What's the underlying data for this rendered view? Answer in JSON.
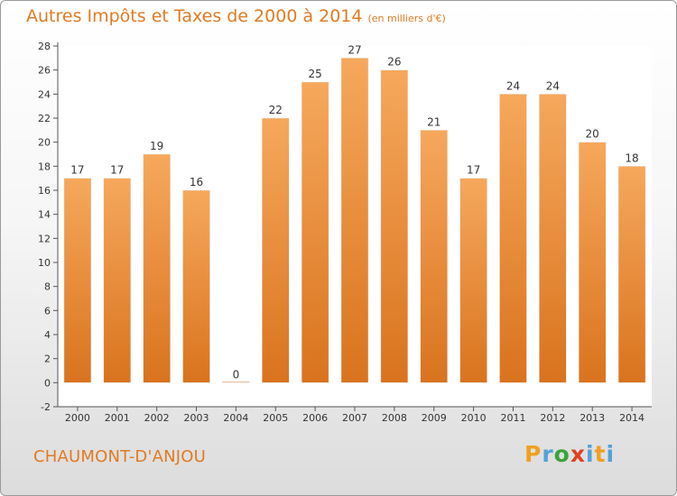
{
  "header": {
    "title": "Autres Impôts et Taxes de 2000 à 2014",
    "subtitle": "(en milliers d'€)"
  },
  "footer": {
    "commune": "CHAUMONT-D'ANJOU",
    "brand": "Proxiti"
  },
  "colors": {
    "accent": "#e07b22",
    "bar_light": "#f6a85c",
    "bar_dark": "#d9731e"
  },
  "chart_data": {
    "type": "bar",
    "title": "Autres Impôts et Taxes de 2000 à 2014",
    "subtitle": "(en milliers d'€)",
    "xlabel": "",
    "ylabel": "",
    "categories": [
      "2000",
      "2001",
      "2002",
      "2003",
      "2004",
      "2005",
      "2006",
      "2007",
      "2008",
      "2009",
      "2010",
      "2011",
      "2012",
      "2013",
      "2014"
    ],
    "values": [
      17,
      17,
      19,
      16,
      0,
      22,
      25,
      27,
      26,
      21,
      17,
      24,
      24,
      20,
      18
    ],
    "ylim": [
      -2,
      28
    ],
    "yticks": [
      -2,
      0,
      2,
      4,
      6,
      8,
      10,
      12,
      14,
      16,
      18,
      20,
      22,
      24,
      26,
      28
    ],
    "grid": false,
    "legend": "none"
  }
}
